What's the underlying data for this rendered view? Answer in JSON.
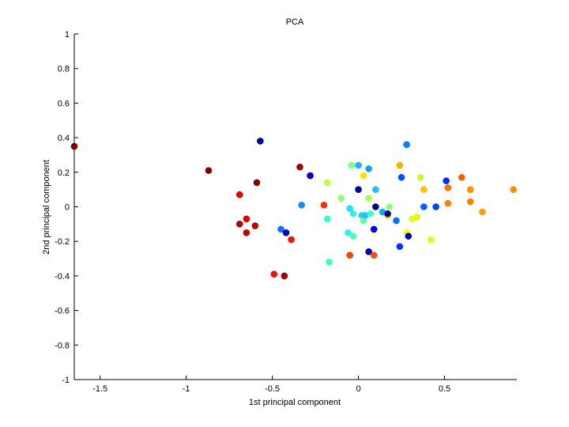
{
  "chart_data": {
    "type": "scatter",
    "title": "PCA",
    "xlabel": "1st principal component",
    "ylabel": "2nd principal component",
    "xlim": [
      -1.65,
      0.92
    ],
    "ylim": [
      -1,
      1
    ],
    "xticks": [
      -1.5,
      -1,
      -0.5,
      0,
      0.5
    ],
    "xtick_labels": [
      "-1.5",
      "-1",
      "-0.5",
      "0",
      "0.5"
    ],
    "yticks": [
      -1,
      -0.8,
      -0.6,
      -0.4,
      -0.2,
      0,
      0.2,
      0.4,
      0.6,
      0.8,
      1
    ],
    "ytick_labels": [
      "-1",
      "-0.8",
      "-0.6",
      "-0.4",
      "-0.2",
      "0",
      "0.2",
      "0.4",
      "0.6",
      "0.8",
      "1"
    ],
    "grid": false,
    "colormap": "jet",
    "points": [
      {
        "x": -1.65,
        "y": 0.35,
        "color": "#800000"
      },
      {
        "x": -0.87,
        "y": 0.21,
        "color": "#800000"
      },
      {
        "x": -0.59,
        "y": 0.14,
        "color": "#800000"
      },
      {
        "x": -0.34,
        "y": 0.23,
        "color": "#a00000"
      },
      {
        "x": -0.69,
        "y": 0.07,
        "color": "#e00000"
      },
      {
        "x": -0.69,
        "y": -0.1,
        "color": "#b00000"
      },
      {
        "x": -0.65,
        "y": -0.07,
        "color": "#e00000"
      },
      {
        "x": -0.65,
        "y": -0.15,
        "color": "#c00000"
      },
      {
        "x": -0.6,
        "y": -0.11,
        "color": "#c00000"
      },
      {
        "x": -0.39,
        "y": -0.19,
        "color": "#f01000"
      },
      {
        "x": -0.49,
        "y": -0.39,
        "color": "#f01000"
      },
      {
        "x": -0.43,
        "y": -0.4,
        "color": "#a00000"
      },
      {
        "x": -0.57,
        "y": 0.38,
        "color": "#000090"
      },
      {
        "x": -0.28,
        "y": 0.18,
        "color": "#0000c0"
      },
      {
        "x": -0.33,
        "y": 0.01,
        "color": "#1090ff"
      },
      {
        "x": -0.45,
        "y": -0.13,
        "color": "#1070ff"
      },
      {
        "x": -0.42,
        "y": -0.15,
        "color": "#0000c0"
      },
      {
        "x": -0.2,
        "y": 0.01,
        "color": "#ff3000"
      },
      {
        "x": -0.18,
        "y": 0.14,
        "color": "#c0ff40"
      },
      {
        "x": -0.18,
        "y": -0.07,
        "color": "#30ffd0"
      },
      {
        "x": -0.1,
        "y": 0.05,
        "color": "#90ff70"
      },
      {
        "x": -0.06,
        "y": -0.15,
        "color": "#30f0f0"
      },
      {
        "x": -0.17,
        "y": -0.32,
        "color": "#40ffc0"
      },
      {
        "x": -0.05,
        "y": -0.28,
        "color": "#ff4000"
      },
      {
        "x": -0.04,
        "y": 0.24,
        "color": "#80ff80"
      },
      {
        "x": 0.0,
        "y": 0.24,
        "color": "#20b0ff"
      },
      {
        "x": 0.0,
        "y": 0.1,
        "color": "#000090"
      },
      {
        "x": 0.03,
        "y": 0.18,
        "color": "#ffe000"
      },
      {
        "x": 0.06,
        "y": 0.22,
        "color": "#10a0ff"
      },
      {
        "x": 0.06,
        "y": 0.05,
        "color": "#a0ff50"
      },
      {
        "x": 0.1,
        "y": 0.1,
        "color": "#20c0ff"
      },
      {
        "x": -0.05,
        "y": -0.01,
        "color": "#20e0ff"
      },
      {
        "x": -0.03,
        "y": -0.04,
        "color": "#30f0e0"
      },
      {
        "x": -0.03,
        "y": -0.17,
        "color": "#50ffb0"
      },
      {
        "x": 0.02,
        "y": -0.05,
        "color": "#20d0ff"
      },
      {
        "x": 0.03,
        "y": -0.08,
        "color": "#60ffa0"
      },
      {
        "x": 0.04,
        "y": -0.05,
        "color": "#20c0ff"
      },
      {
        "x": 0.07,
        "y": -0.04,
        "color": "#40ffc0"
      },
      {
        "x": 0.1,
        "y": 0.0,
        "color": "#000080"
      },
      {
        "x": 0.09,
        "y": -0.13,
        "color": "#0000e0"
      },
      {
        "x": 0.06,
        "y": -0.26,
        "color": "#0000b0"
      },
      {
        "x": 0.09,
        "y": -0.28,
        "color": "#ff5000"
      },
      {
        "x": 0.14,
        "y": -0.03,
        "color": "#00b0ff"
      },
      {
        "x": 0.17,
        "y": -0.05,
        "color": "#ffd000"
      },
      {
        "x": 0.18,
        "y": 0.0,
        "color": "#90ff70"
      },
      {
        "x": 0.17,
        "y": -0.04,
        "color": "#0000a0"
      },
      {
        "x": 0.22,
        "y": -0.08,
        "color": "#0070ff"
      },
      {
        "x": 0.24,
        "y": -0.23,
        "color": "#0030ff"
      },
      {
        "x": 0.24,
        "y": 0.24,
        "color": "#ffb000"
      },
      {
        "x": 0.25,
        "y": 0.17,
        "color": "#0050ff"
      },
      {
        "x": 0.28,
        "y": 0.36,
        "color": "#0080ff"
      },
      {
        "x": 0.28,
        "y": -0.15,
        "color": "#ffff00"
      },
      {
        "x": 0.29,
        "y": -0.17,
        "color": "#0000c0"
      },
      {
        "x": 0.31,
        "y": -0.07,
        "color": "#e0ff20"
      },
      {
        "x": 0.34,
        "y": -0.06,
        "color": "#f0f000"
      },
      {
        "x": 0.36,
        "y": 0.17,
        "color": "#c0ff30"
      },
      {
        "x": 0.38,
        "y": 0.1,
        "color": "#ffc000"
      },
      {
        "x": 0.38,
        "y": 0.0,
        "color": "#0060ff"
      },
      {
        "x": 0.42,
        "y": -0.19,
        "color": "#d0ff20"
      },
      {
        "x": 0.45,
        "y": 0.0,
        "color": "#0040ff"
      },
      {
        "x": 0.51,
        "y": 0.15,
        "color": "#0030ff"
      },
      {
        "x": 0.52,
        "y": 0.11,
        "color": "#ff7000"
      },
      {
        "x": 0.52,
        "y": 0.02,
        "color": "#ff8000"
      },
      {
        "x": 0.6,
        "y": 0.17,
        "color": "#ff6000"
      },
      {
        "x": 0.65,
        "y": 0.1,
        "color": "#ff9000"
      },
      {
        "x": 0.65,
        "y": 0.03,
        "color": "#ff8000"
      },
      {
        "x": 0.72,
        "y": -0.03,
        "color": "#ffa000"
      },
      {
        "x": 0.9,
        "y": 0.1,
        "color": "#ff9000"
      }
    ]
  }
}
